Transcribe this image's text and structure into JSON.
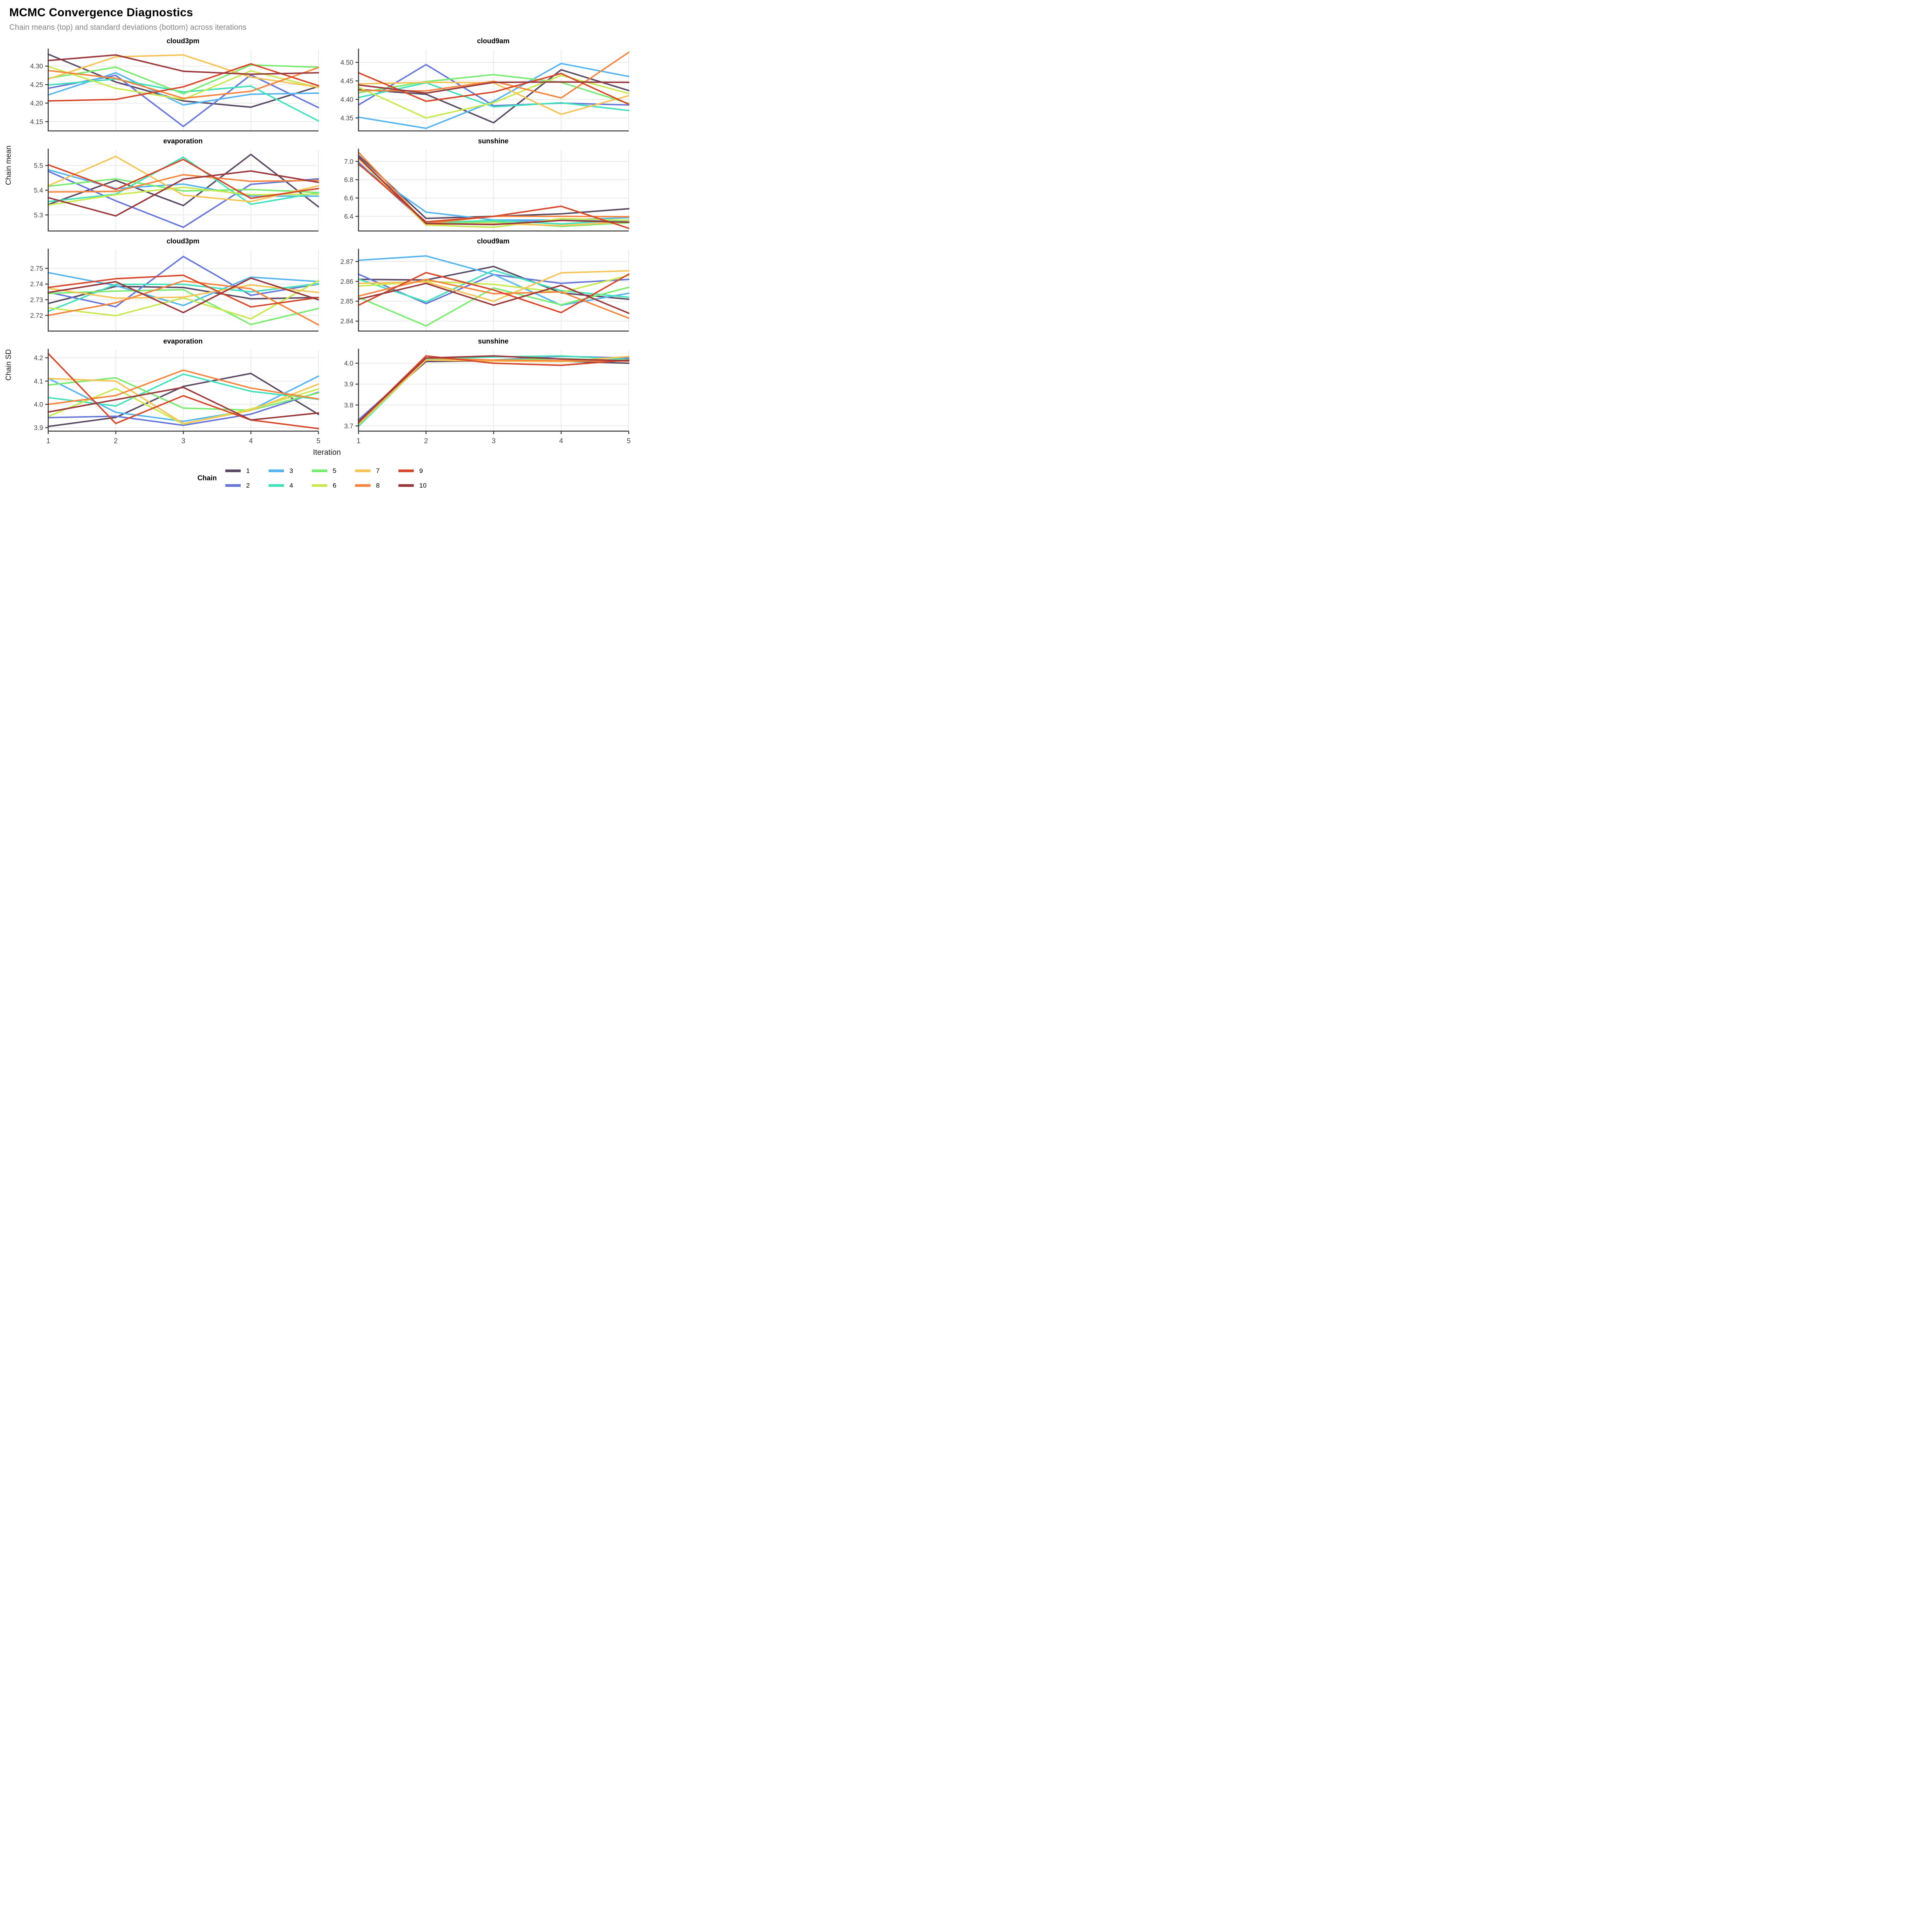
{
  "header": {
    "title": "MCMC Convergence Diagnostics",
    "subtitle": "Chain means (top) and standard deviations (bottom) across iterations"
  },
  "chart_data": {
    "type": "line",
    "x": [
      1,
      2,
      3,
      4,
      5
    ],
    "xlabel": "Iteration",
    "ylabel_top": "Chain mean",
    "ylabel_bottom": "Chain SD",
    "grid": "on",
    "legend": {
      "title": "Chain",
      "position": "bottom",
      "rows": [
        [
          1,
          3,
          5,
          7,
          9
        ],
        [
          2,
          4,
          6,
          8,
          10
        ]
      ]
    },
    "colors": {
      "1": "#5a4a63",
      "2": "#6677d9",
      "3": "#55b5f0",
      "4": "#41e2bb",
      "5": "#78ec6e",
      "6": "#c8e94e",
      "7": "#f6c454",
      "8": "#f5853f",
      "9": "#d8482b",
      "10": "#9c393d"
    },
    "panels": [
      {
        "title": "cloud3pm",
        "metric": "mean",
        "ylim": [
          4.125,
          4.345
        ],
        "yticks": [
          4.15,
          4.2,
          4.25,
          4.3
        ],
        "ytick_labels": [
          "4.15",
          "4.20",
          "4.25",
          "4.30"
        ],
        "show_x_labels": false,
        "series": [
          {
            "chain": 1,
            "values": [
              4.332,
              4.257,
              4.206,
              4.189,
              4.245
            ]
          },
          {
            "chain": 2,
            "values": [
              4.24,
              4.275,
              4.137,
              4.276,
              4.188
            ]
          },
          {
            "chain": 3,
            "values": [
              4.222,
              4.282,
              4.195,
              4.224,
              4.227
            ]
          },
          {
            "chain": 4,
            "values": [
              4.249,
              4.265,
              4.23,
              4.246,
              4.152
            ]
          },
          {
            "chain": 5,
            "values": [
              4.267,
              4.297,
              4.225,
              4.303,
              4.297
            ]
          },
          {
            "chain": 6,
            "values": [
              4.299,
              4.24,
              4.21,
              4.287,
              4.242
            ]
          },
          {
            "chain": 7,
            "values": [
              4.265,
              4.325,
              4.33,
              4.27,
              4.243
            ]
          },
          {
            "chain": 8,
            "values": [
              4.288,
              4.267,
              4.213,
              4.232,
              4.296
            ]
          },
          {
            "chain": 9,
            "values": [
              4.206,
              4.21,
              4.244,
              4.306,
              4.247
            ]
          },
          {
            "chain": 10,
            "values": [
              4.315,
              4.33,
              4.286,
              4.278,
              4.282
            ]
          }
        ]
      },
      {
        "title": "cloud9am",
        "metric": "mean",
        "ylim": [
          4.315,
          4.535
        ],
        "yticks": [
          4.35,
          4.4,
          4.45,
          4.5
        ],
        "ytick_labels": [
          "4.35",
          "4.40",
          "4.45",
          "4.50"
        ],
        "show_x_labels": false,
        "series": [
          {
            "chain": 1,
            "values": [
              4.427,
              4.414,
              4.337,
              4.48,
              4.424
            ]
          },
          {
            "chain": 2,
            "values": [
              4.385,
              4.494,
              4.383,
              4.39,
              4.385
            ]
          },
          {
            "chain": 3,
            "values": [
              4.352,
              4.322,
              4.395,
              4.497,
              4.462
            ]
          },
          {
            "chain": 4,
            "values": [
              4.405,
              4.445,
              4.38,
              4.391,
              4.37
            ]
          },
          {
            "chain": 5,
            "values": [
              4.418,
              4.448,
              4.467,
              4.446,
              4.389
            ]
          },
          {
            "chain": 6,
            "values": [
              4.433,
              4.35,
              4.391,
              4.465,
              4.416
            ]
          },
          {
            "chain": 7,
            "values": [
              4.442,
              4.446,
              4.445,
              4.36,
              4.41
            ]
          },
          {
            "chain": 8,
            "values": [
              4.424,
              4.423,
              4.449,
              4.404,
              4.527
            ]
          },
          {
            "chain": 9,
            "values": [
              4.472,
              4.395,
              4.42,
              4.47,
              4.387
            ]
          },
          {
            "chain": 10,
            "values": [
              4.439,
              4.417,
              4.446,
              4.447,
              4.446
            ]
          }
        ]
      },
      {
        "title": "evaporation",
        "metric": "mean",
        "ylim": [
          5.235,
          5.565
        ],
        "yticks": [
          5.3,
          5.4,
          5.5
        ],
        "ytick_labels": [
          "5.3",
          "5.4",
          "5.5"
        ],
        "show_x_labels": false,
        "series": [
          {
            "chain": 1,
            "values": [
              5.342,
              5.44,
              5.338,
              5.545,
              5.333
            ]
          },
          {
            "chain": 2,
            "values": [
              5.477,
              5.357,
              5.25,
              5.424,
              5.446
            ]
          },
          {
            "chain": 3,
            "values": [
              5.483,
              5.407,
              5.425,
              5.376,
              5.376
            ]
          },
          {
            "chain": 4,
            "values": [
              5.354,
              5.384,
              5.534,
              5.343,
              5.39
            ]
          },
          {
            "chain": 5,
            "values": [
              5.416,
              5.446,
              5.397,
              5.403,
              5.391
            ]
          },
          {
            "chain": 6,
            "values": [
              5.34,
              5.382,
              5.412,
              5.382,
              5.384
            ]
          },
          {
            "chain": 7,
            "values": [
              5.418,
              5.537,
              5.38,
              5.354,
              5.418
            ]
          },
          {
            "chain": 8,
            "values": [
              5.393,
              5.395,
              5.463,
              5.436,
              5.44
            ]
          },
          {
            "chain": 9,
            "values": [
              5.503,
              5.403,
              5.525,
              5.367,
              5.407
            ]
          },
          {
            "chain": 10,
            "values": [
              5.37,
              5.296,
              5.445,
              5.478,
              5.432
            ]
          }
        ]
      },
      {
        "title": "sunshine",
        "metric": "mean",
        "ylim": [
          6.24,
          7.13
        ],
        "yticks": [
          6.4,
          6.6,
          6.8,
          7.0
        ],
        "ytick_labels": [
          "6.4",
          "6.6",
          "6.8",
          "7.0"
        ],
        "show_x_labels": false,
        "series": [
          {
            "chain": 1,
            "values": [
              7.066,
              6.377,
              6.4,
              6.427,
              6.483
            ]
          },
          {
            "chain": 2,
            "values": [
              6.99,
              6.315,
              6.345,
              6.36,
              6.35
            ]
          },
          {
            "chain": 3,
            "values": [
              6.965,
              6.446,
              6.36,
              6.36,
              6.385
            ]
          },
          {
            "chain": 4,
            "values": [
              7.034,
              6.328,
              6.355,
              6.317,
              6.36
            ]
          },
          {
            "chain": 5,
            "values": [
              7.04,
              6.318,
              6.34,
              6.29,
              6.33
            ]
          },
          {
            "chain": 6,
            "values": [
              7.033,
              6.305,
              6.28,
              6.374,
              6.357
            ]
          },
          {
            "chain": 7,
            "values": [
              7.028,
              6.312,
              6.32,
              6.3,
              6.34
            ]
          },
          {
            "chain": 8,
            "values": [
              7.1,
              6.32,
              6.4,
              6.4,
              6.396
            ]
          },
          {
            "chain": 9,
            "values": [
              6.973,
              6.34,
              6.4,
              6.51,
              6.27
            ]
          },
          {
            "chain": 10,
            "values": [
              7.044,
              6.322,
              6.31,
              6.355,
              6.335
            ]
          }
        ]
      },
      {
        "title": "cloud3pm",
        "metric": "sd",
        "ylim": [
          2.71,
          2.762
        ],
        "yticks": [
          2.72,
          2.73,
          2.74,
          2.75
        ],
        "ytick_labels": [
          "2.72",
          "2.73",
          "2.74",
          "2.75"
        ],
        "show_x_labels": false,
        "series": [
          {
            "chain": 1,
            "values": [
              2.7276,
              2.7385,
              2.7378,
              2.7306,
              2.7314
            ]
          },
          {
            "chain": 2,
            "values": [
              2.7348,
              2.7255,
              2.7576,
              2.7328,
              2.74
            ]
          },
          {
            "chain": 3,
            "values": [
              2.7473,
              2.739,
              2.7263,
              2.7444,
              2.7416
            ]
          },
          {
            "chain": 4,
            "values": [
              2.7226,
              2.7398,
              2.7398,
              2.735,
              2.7402
            ]
          },
          {
            "chain": 5,
            "values": [
              2.734,
              2.7355,
              2.7364,
              2.7142,
              2.7244
            ]
          },
          {
            "chain": 6,
            "values": [
              2.7248,
              2.7198,
              2.7312,
              2.7178,
              2.7422
            ]
          },
          {
            "chain": 7,
            "values": [
              2.7373,
              2.731,
              2.7316,
              2.7394,
              2.7346
            ]
          },
          {
            "chain": 8,
            "values": [
              2.72,
              2.728,
              2.742,
              2.737,
              2.714
            ]
          },
          {
            "chain": 9,
            "values": [
              2.7378,
              2.7434,
              2.7456,
              2.7254,
              2.7314
            ]
          },
          {
            "chain": 10,
            "values": [
              2.7346,
              2.7415,
              2.7218,
              2.7438,
              2.73
            ]
          }
        ]
      },
      {
        "title": "cloud9am",
        "metric": "sd",
        "ylim": [
          2.835,
          2.876
        ],
        "yticks": [
          2.84,
          2.85,
          2.86,
          2.87
        ],
        "ytick_labels": [
          "2.84",
          "2.85",
          "2.86",
          "2.87"
        ],
        "show_x_labels": false,
        "series": [
          {
            "chain": 1,
            "values": [
              2.861,
              2.8607,
              2.8675,
              2.8542,
              2.851
            ]
          },
          {
            "chain": 2,
            "values": [
              2.8636,
              2.8488,
              2.8634,
              2.859,
              2.861
            ]
          },
          {
            "chain": 3,
            "values": [
              2.8706,
              2.8728,
              2.8635,
              2.848,
              2.854
            ]
          },
          {
            "chain": 4,
            "values": [
              2.8611,
              2.8497,
              2.8656,
              2.8553,
              2.852
            ]
          },
          {
            "chain": 5,
            "values": [
              2.852,
              2.8376,
              2.8567,
              2.8482,
              2.857
            ]
          },
          {
            "chain": 6,
            "values": [
              2.8576,
              2.86,
              2.8585,
              2.8544,
              2.863
            ]
          },
          {
            "chain": 7,
            "values": [
              2.859,
              2.8597,
              2.85,
              2.8643,
              2.8653
            ]
          },
          {
            "chain": 8,
            "values": [
              2.8526,
              2.861,
              2.8538,
              2.8547,
              2.8415
            ]
          },
          {
            "chain": 9,
            "values": [
              2.848,
              2.8644,
              2.8557,
              2.8443,
              2.8636
            ]
          },
          {
            "chain": 10,
            "values": [
              2.851,
              2.859,
              2.848,
              2.858,
              2.844
            ]
          }
        ]
      },
      {
        "title": "evaporation",
        "metric": "sd",
        "ylim": [
          3.885,
          4.235
        ],
        "yticks": [
          3.9,
          4.0,
          4.1,
          4.2
        ],
        "ytick_labels": [
          "3.9",
          "4.0",
          "4.1",
          "4.2"
        ],
        "show_x_labels": true,
        "series": [
          {
            "chain": 1,
            "values": [
              3.905,
              3.944,
              4.077,
              4.133,
              3.957
            ]
          },
          {
            "chain": 2,
            "values": [
              3.943,
              3.949,
              3.91,
              3.958,
              4.052
            ]
          },
          {
            "chain": 3,
            "values": [
              4.112,
              3.966,
              3.927,
              3.975,
              4.121
            ]
          },
          {
            "chain": 4,
            "values": [
              4.029,
              3.993,
              4.13,
              4.056,
              4.022
            ]
          },
          {
            "chain": 5,
            "values": [
              4.083,
              4.114,
              3.984,
              3.975,
              4.049
            ]
          },
          {
            "chain": 6,
            "values": [
              3.948,
              4.068,
              3.915,
              3.98,
              4.066
            ]
          },
          {
            "chain": 7,
            "values": [
              4.111,
              4.1,
              3.917,
              3.974,
              4.087
            ]
          },
          {
            "chain": 8,
            "values": [
              4.0,
              4.038,
              4.147,
              4.07,
              4.023
            ]
          },
          {
            "chain": 9,
            "values": [
              4.218,
              3.918,
              4.037,
              3.933,
              3.896
            ]
          },
          {
            "chain": 10,
            "values": [
              3.967,
              4.02,
              4.073,
              3.933,
              3.963
            ]
          }
        ]
      },
      {
        "title": "sunshine",
        "metric": "sd",
        "ylim": [
          3.675,
          4.065
        ],
        "yticks": [
          3.7,
          3.8,
          3.9,
          4.0
        ],
        "ytick_labels": [
          "3.7",
          "3.8",
          "3.9",
          "4.0"
        ],
        "show_x_labels": true,
        "series": [
          {
            "chain": 1,
            "values": [
              3.726,
              4.008,
              4.012,
              4.01,
              4.0
            ]
          },
          {
            "chain": 2,
            "values": [
              3.729,
              4.018,
              4.015,
              4.033,
              4.025
            ]
          },
          {
            "chain": 3,
            "values": [
              3.72,
              4.018,
              4.012,
              4.01,
              4.013
            ]
          },
          {
            "chain": 4,
            "values": [
              3.698,
              4.018,
              4.03,
              4.035,
              4.018
            ]
          },
          {
            "chain": 5,
            "values": [
              3.71,
              4.015,
              4.015,
              4.022,
              4.012
            ]
          },
          {
            "chain": 6,
            "values": [
              3.705,
              4.015,
              4.012,
              4.008,
              4.015
            ]
          },
          {
            "chain": 7,
            "values": [
              3.715,
              4.015,
              4.01,
              4.008,
              4.032
            ]
          },
          {
            "chain": 8,
            "values": [
              3.712,
              4.025,
              4.015,
              4.012,
              4.01
            ]
          },
          {
            "chain": 9,
            "values": [
              3.718,
              4.035,
              4.0,
              3.99,
              4.015
            ]
          },
          {
            "chain": 10,
            "values": [
              3.72,
              4.025,
              4.035,
              4.02,
              4.012
            ]
          }
        ]
      }
    ]
  }
}
